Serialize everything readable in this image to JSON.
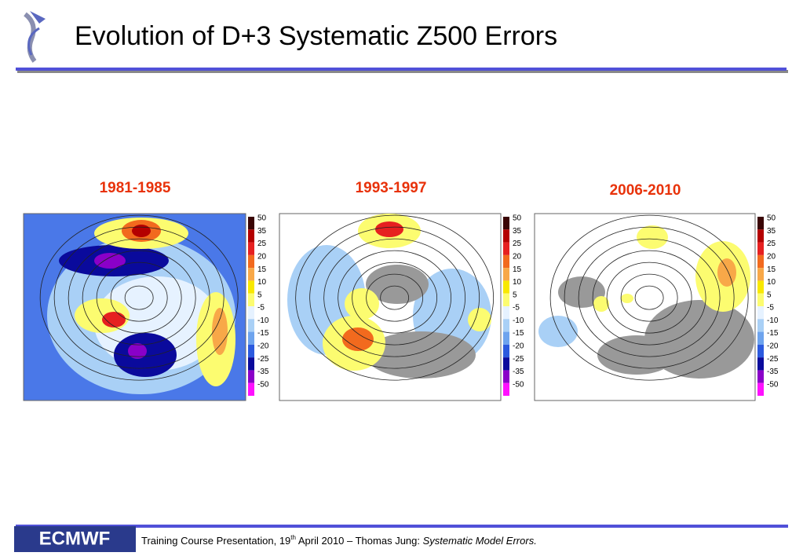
{
  "header": {
    "title": "Evolution of D+3 Systematic Z500 Errors"
  },
  "panels": [
    {
      "label": "1981-1985"
    },
    {
      "label": "1993-1997"
    },
    {
      "label": "2006-2010"
    }
  ],
  "colorbar": {
    "levels": [
      50,
      35,
      25,
      20,
      15,
      10,
      5,
      -5,
      -10,
      -15,
      -20,
      -25,
      -35,
      -50
    ],
    "colors": [
      "#3a0505",
      "#b40000",
      "#e62020",
      "#f26a1e",
      "#f8a848",
      "#f8e800",
      "#fcfc70",
      "#e6f2ff",
      "#a9d0f6",
      "#6ea4ee",
      "#2c5ade",
      "#0a0a9c",
      "#8a00c8",
      "#ff10ff"
    ]
  },
  "footer": {
    "logo": "ECMWF",
    "text_before": "Training Course Presentation, 19",
    "superscript": "th",
    "text_middle": " April 2010 – Thomas Jung: ",
    "italic": "Systematic Model Errors."
  }
}
